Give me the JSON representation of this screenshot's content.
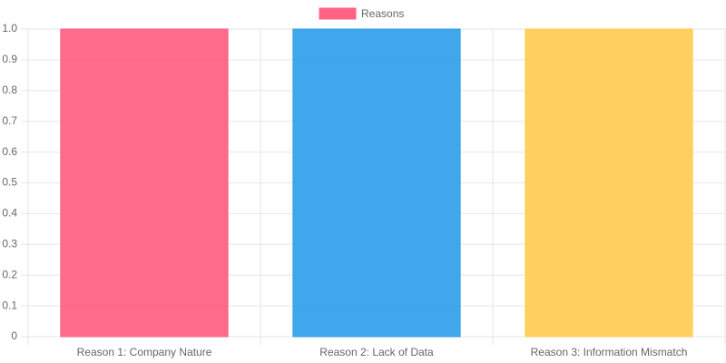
{
  "chart_data": {
    "type": "bar",
    "categories": [
      "Reason 1: Company Nature",
      "Reason 2: Lack of Data",
      "Reason 3: Information Mismatch"
    ],
    "series": [
      {
        "name": "Reasons",
        "colors": [
          "#ff6384",
          "#36a2eb",
          "#ffcd56"
        ],
        "values": [
          1,
          1,
          1
        ]
      }
    ],
    "ylim": [
      0,
      1
    ],
    "yticks": [
      0,
      0.1,
      0.2,
      0.3,
      0.4,
      0.5,
      0.6,
      0.7,
      0.8,
      0.9,
      {
        "value": 1,
        "label": "1.0"
      }
    ],
    "grid": true,
    "legend": "top"
  }
}
